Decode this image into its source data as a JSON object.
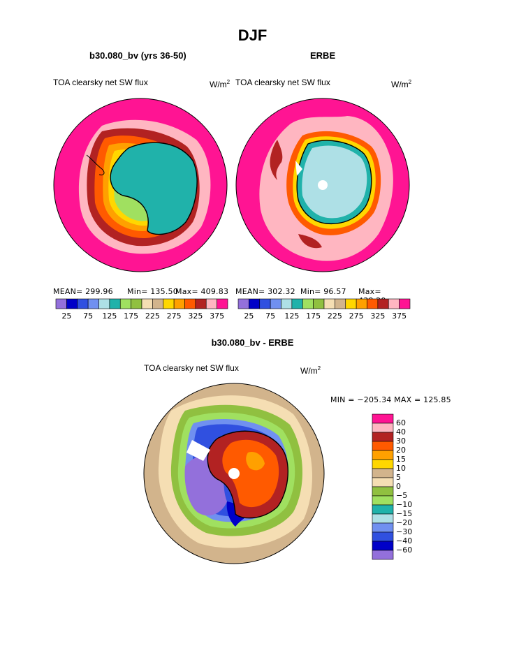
{
  "page": {
    "title": "DJF",
    "panel1": {
      "header": "b30.080_bv (yrs 36-50)",
      "field": "TOA clearsky net SW flux",
      "units_base": "W/m",
      "units_exp": "2",
      "stats": {
        "mean": "MEAN= 299.96",
        "min": "Min= 135.50",
        "max": "Max= 409.83"
      }
    },
    "panel2": {
      "header": "ERBE",
      "field": "TOA clearsky net SW flux",
      "units_base": "W/m",
      "units_exp": "2",
      "stats": {
        "mean": "MEAN= 302.32",
        "min": "Min=  96.57",
        "max": "Max= 438.29"
      }
    },
    "panel3": {
      "header": "b30.080_bv - ERBE",
      "field": "TOA clearsky net SW flux",
      "units_base": "W/m",
      "units_exp": "2",
      "minmax": "MIN = −205.34 MAX = 125.85"
    }
  },
  "colorbar_top": {
    "colors": [
      "#9370db",
      "#0000c8",
      "#3050e0",
      "#7090f0",
      "#aee0e6",
      "#20b2aa",
      "#a0e060",
      "#90c040",
      "#f5deb3",
      "#d2b48c",
      "#ffd700",
      "#ffa000",
      "#ff5a00",
      "#b22222",
      "#ffb6c1",
      "#ff1493"
    ],
    "labels": [
      "25",
      "75",
      "125",
      "175",
      "225",
      "275",
      "325",
      "375"
    ]
  },
  "colorbar_diff": {
    "colors": [
      "#ff1493",
      "#ffb6c1",
      "#b22222",
      "#ff5a00",
      "#ffa000",
      "#ffd700",
      "#d2b48c",
      "#f5deb3",
      "#90c040",
      "#a0e060",
      "#20b2aa",
      "#aee0e6",
      "#7090f0",
      "#3050e0",
      "#0000c8",
      "#9370db"
    ],
    "labels": [
      "60",
      "40",
      "30",
      "20",
      "15",
      "10",
      "5",
      "0",
      "−5",
      "−10",
      "−15",
      "−20",
      "−30",
      "−40",
      "−60"
    ]
  },
  "map_colors": {
    "magenta": "#ff1493",
    "pink": "#ffb6c1",
    "red": "#b22222",
    "orange_red": "#ff5a00",
    "orange": "#ffa000",
    "yellow": "#ffd700",
    "tan": "#d2b48c",
    "wheat": "#f5deb3",
    "green": "#90c040",
    "light_green": "#a0e060",
    "teal": "#20b2aa",
    "light_blue": "#aee0e6",
    "blue": "#3050e0",
    "navy": "#0000c8",
    "purple": "#9370db"
  }
}
